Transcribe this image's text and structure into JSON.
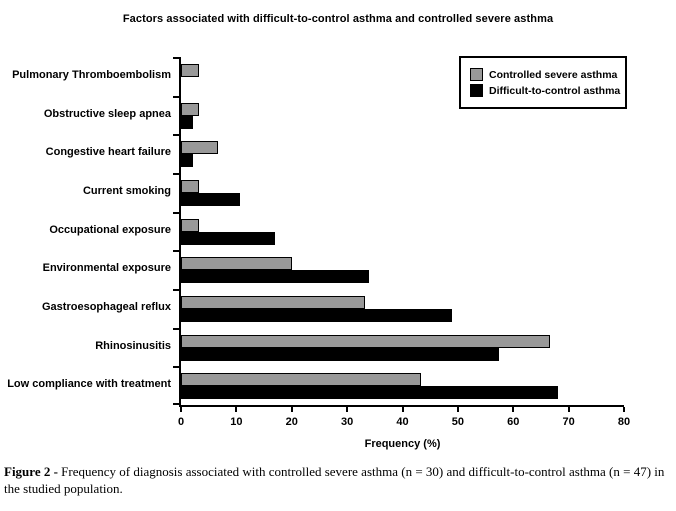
{
  "title": "Factors associated with difficult-to-control asthma and controlled severe asthma",
  "legend": [
    {
      "label": "Controlled severe asthma",
      "color": "#999999"
    },
    {
      "label": "Difficult-to-control asthma",
      "color": "#000000"
    }
  ],
  "chart_data": {
    "type": "bar",
    "orientation": "horizontal",
    "title": "Factors associated with difficult-to-control asthma and controlled severe asthma",
    "categories": [
      "Pulmonary Thromboembolism",
      "Obstructive sleep apnea",
      "Congestive heart failure",
      "Current smoking",
      "Occupational exposure",
      "Environmental exposure",
      "Gastroesophageal reflux",
      "Rhinosinusitis",
      "Low compliance with treatment"
    ],
    "series": [
      {
        "name": "Controlled severe asthma",
        "color": "#999999",
        "values": [
          3.3,
          3.3,
          6.7,
          3.3,
          3.3,
          20.0,
          33.3,
          66.7,
          43.3
        ]
      },
      {
        "name": "Difficult-to-control asthma",
        "color": "#000000",
        "values": [
          0,
          2.1,
          2.1,
          10.6,
          17.0,
          34.0,
          48.9,
          57.4,
          68.1
        ]
      }
    ],
    "xlabel": "Frequency (%)",
    "xlim": [
      0,
      80
    ],
    "xticks": [
      0,
      10,
      20,
      30,
      40,
      50,
      60,
      70,
      80
    ],
    "legend_position": "top-right",
    "grid": false
  },
  "caption": {
    "label": "Figure 2 -",
    "text": " Frequency of diagnosis associated with controlled severe asthma (n = 30) and difficult-to-control asthma (n = 47) in the studied population."
  }
}
